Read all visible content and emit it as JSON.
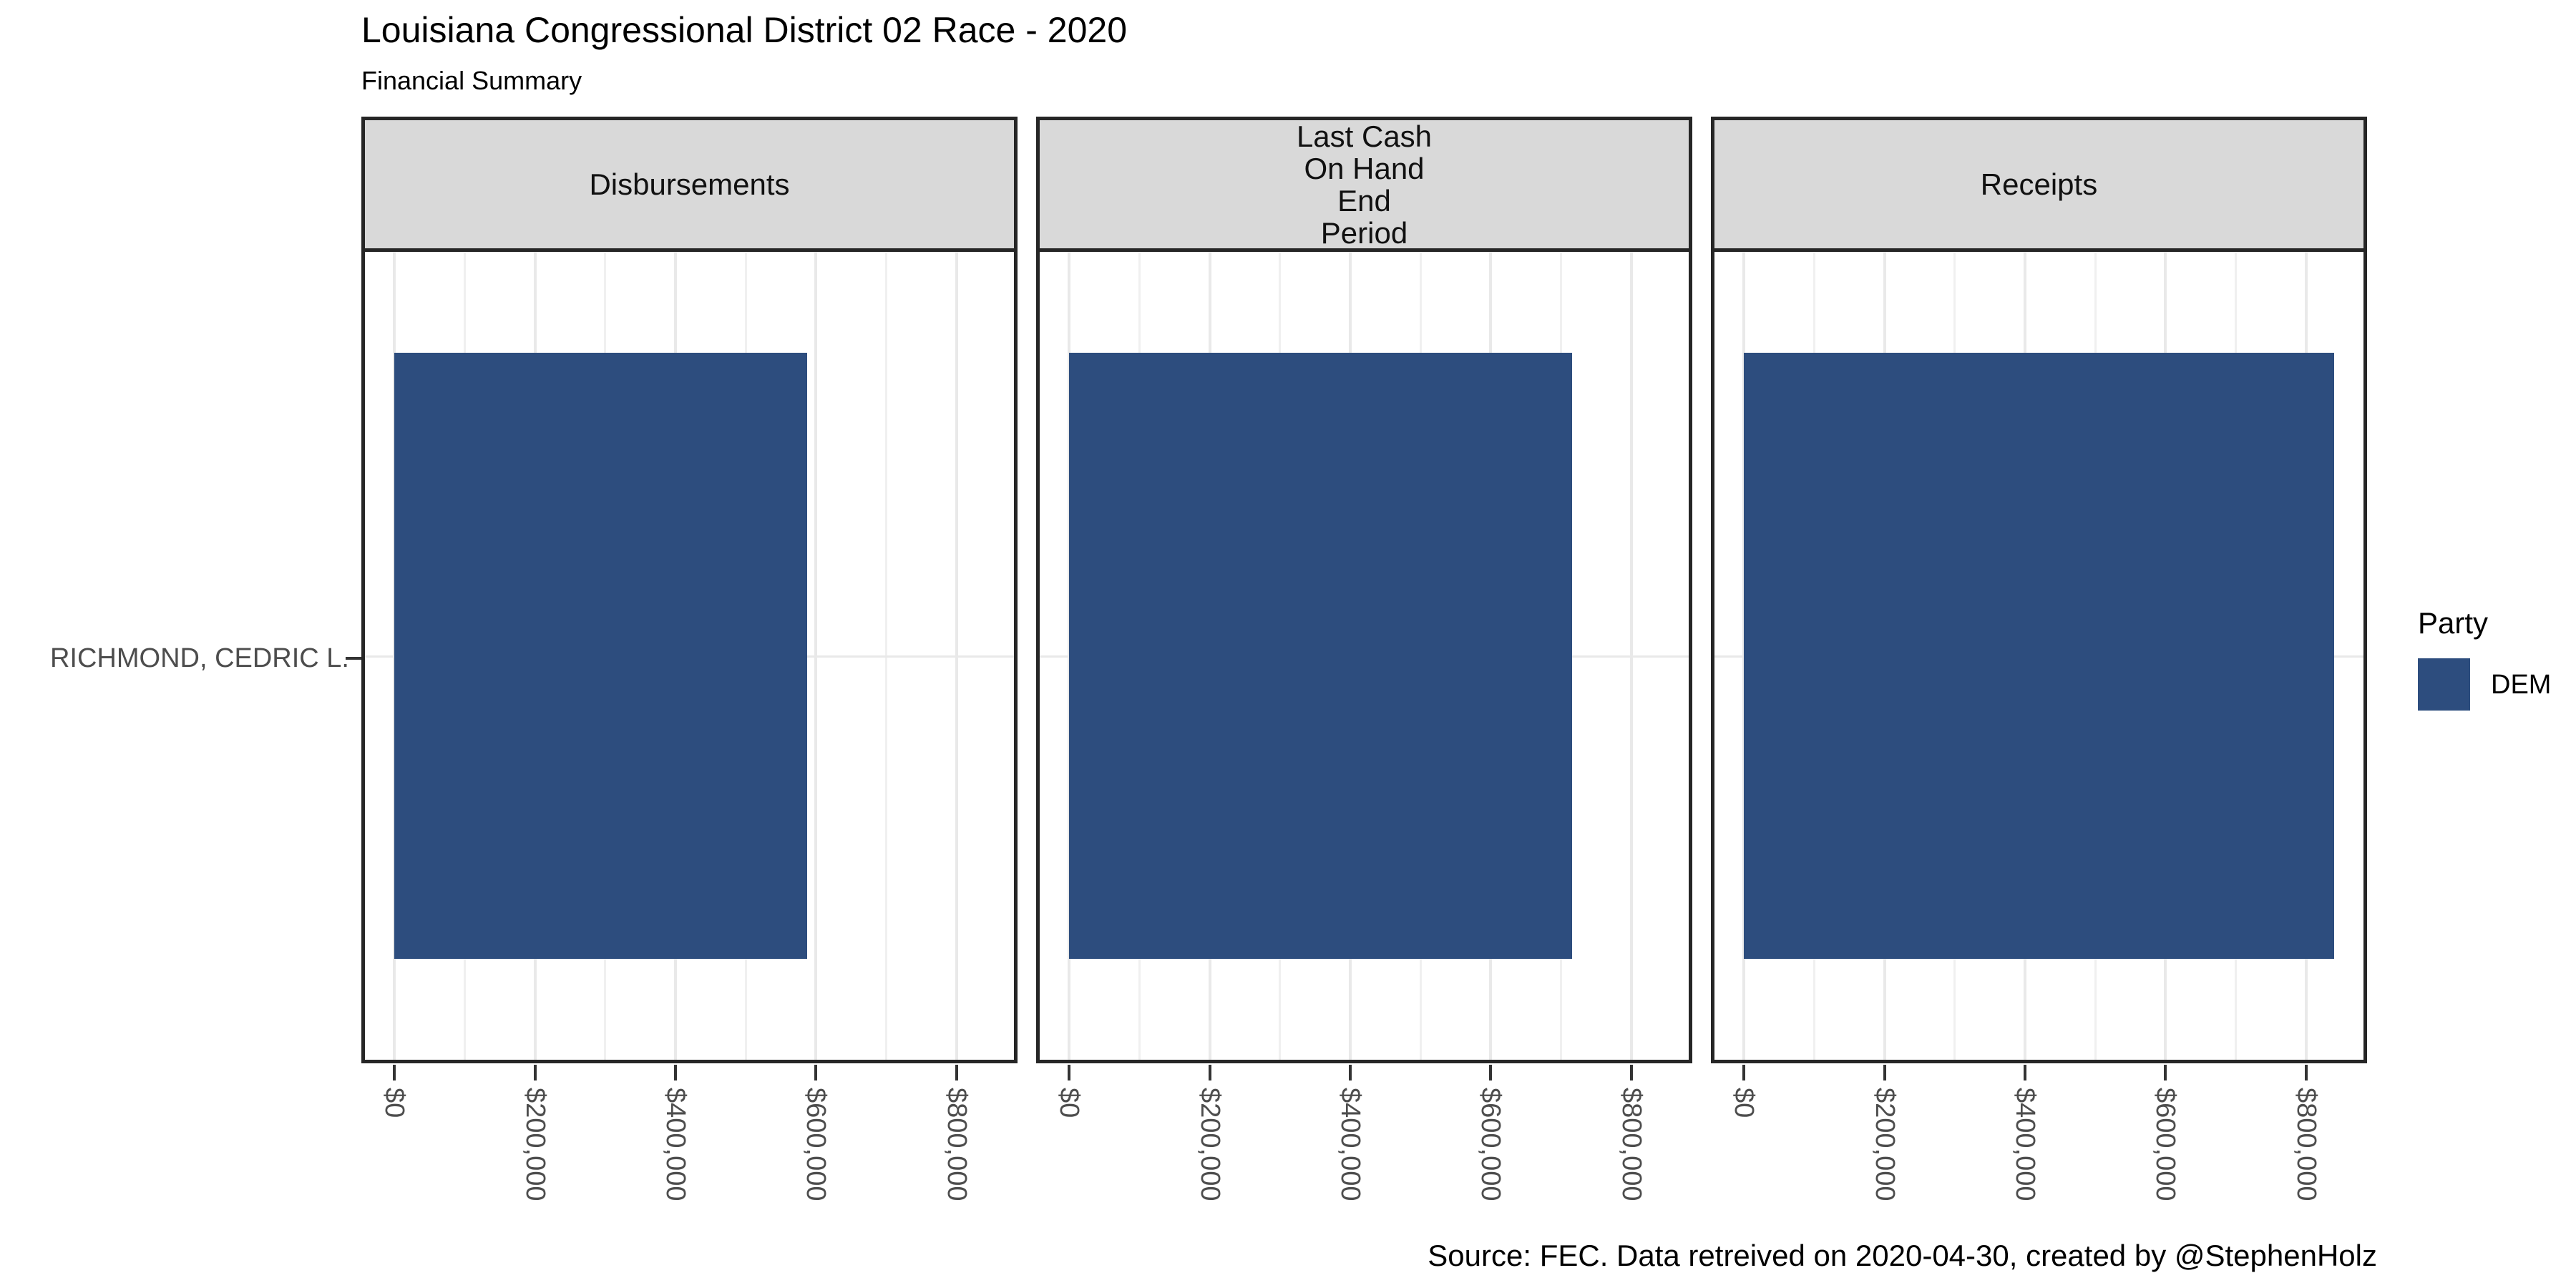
{
  "title": "Louisiana Congressional District 02 Race - 2020",
  "subtitle": "Financial Summary",
  "caption": "Source: FEC. Data retreived on 2020-04-30, created by @StephenHolz",
  "y_axis": {
    "category": "RICHMOND, CEDRIC L."
  },
  "legend": {
    "title": "Party",
    "entries": [
      {
        "label": "DEM",
        "color": "#2D4D7E"
      }
    ]
  },
  "chart_data": {
    "type": "bar",
    "orientation": "horizontal",
    "candidate": "RICHMOND, CEDRIC L.",
    "party": "DEM",
    "bar_color": "#2D4D7E",
    "facets": [
      {
        "label": "Disbursements",
        "value": 588000
      },
      {
        "label": "Last Cash\nOn Hand\nEnd\nPeriod",
        "value": 716000
      },
      {
        "label": "Receipts",
        "value": 840000
      }
    ],
    "x_ticks": {
      "values": [
        0,
        200000,
        400000,
        600000,
        800000
      ],
      "labels": [
        "$0",
        "$200,000",
        "$400,000",
        "$600,000",
        "$800,000"
      ]
    },
    "x_minor": [
      100000,
      300000,
      500000,
      700000
    ],
    "xlim": [
      -42000,
      882000
    ],
    "grid": "vertical major and minor, light gray",
    "legend_position": "right",
    "scales": "fixed across facets"
  }
}
